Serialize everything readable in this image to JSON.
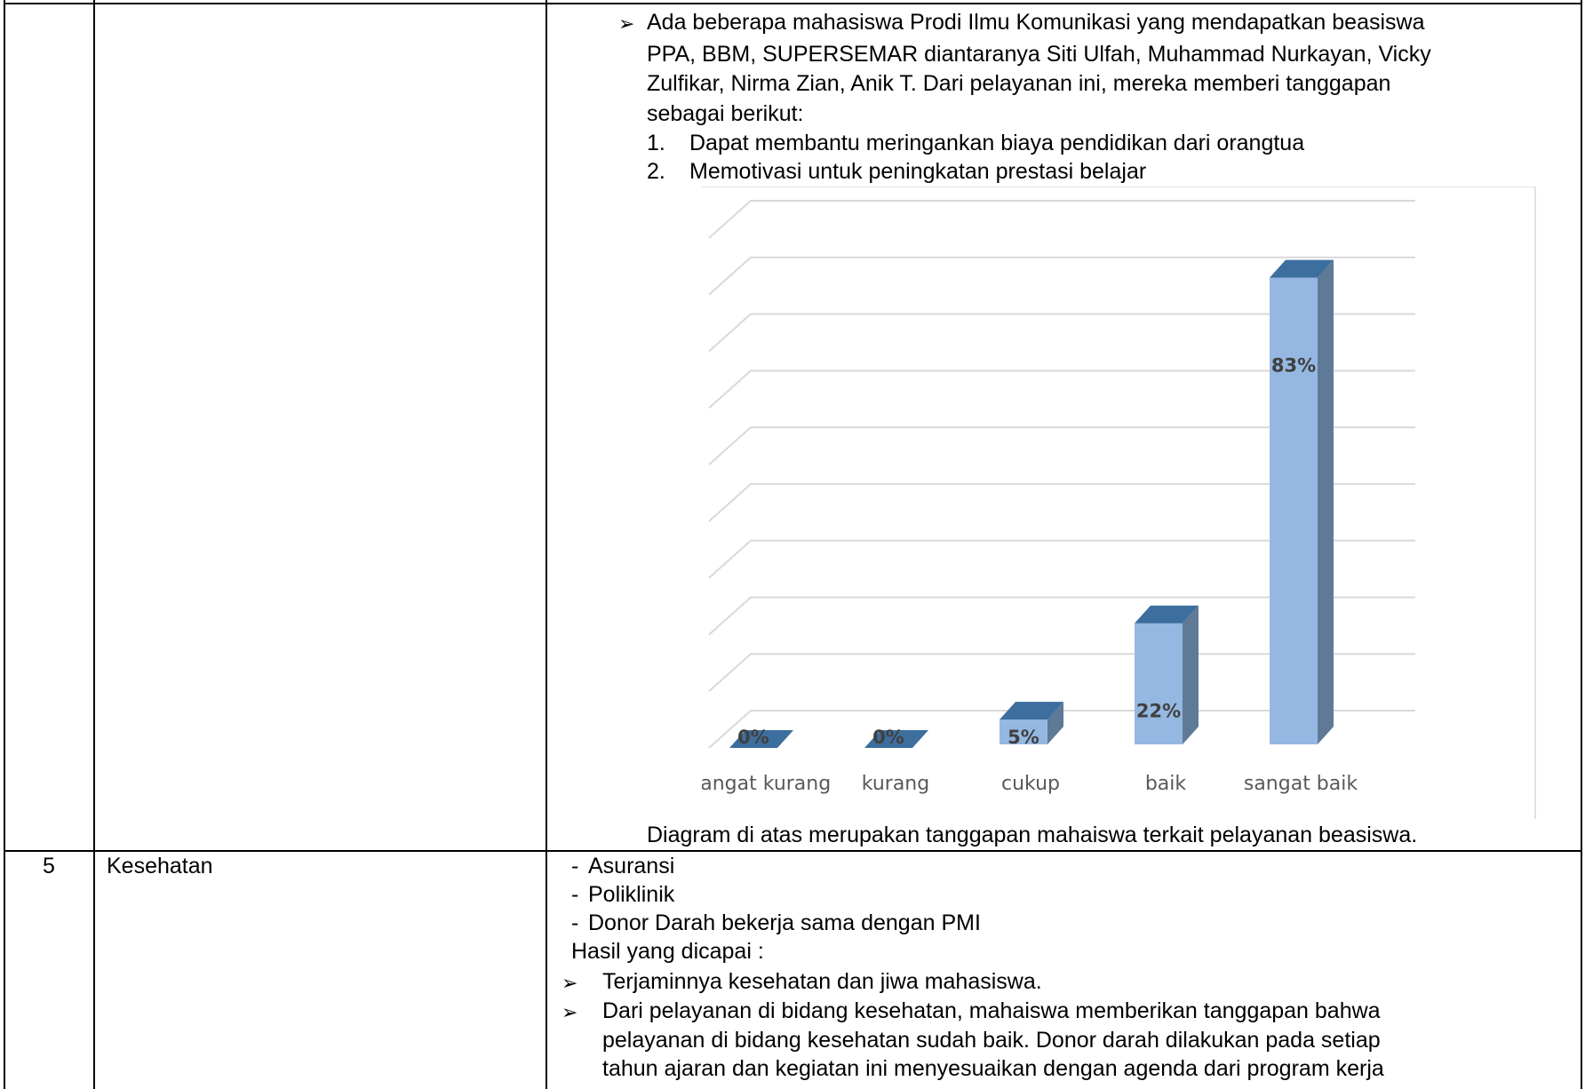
{
  "row_top": {
    "beasiswa_bullet": {
      "marker": "➢",
      "lines": [
        "Ada beberapa mahasiswa Prodi Ilmu Komunikasi yang mendapatkan beasiswa",
        "PPA, BBM, SUPERSEMAR diantaranya Siti Ulfah, Muhammad Nurkayan, Vicky",
        "Zulfikar, Nirma Zian, Anik T. Dari pelayanan ini, mereka memberi tanggapan",
        "sebagai berikut:"
      ]
    },
    "responses": [
      {
        "num": "1.",
        "text": "Dapat membantu meringankan biaya pendidikan dari orangtua"
      },
      {
        "num": "2.",
        "text": "Memotivasi untuk peningkatan prestasi belajar"
      }
    ],
    "caption": "Diagram di atas merupakan tanggapan mahaiswa terkait pelayanan beasiswa."
  },
  "row_5": {
    "no": "5",
    "category": "Kesehatan",
    "dash_items": [
      {
        "dash": "-",
        "text": "Asuransi"
      },
      {
        "dash": "-",
        "text": "Poliklinik"
      },
      {
        "dash": "-",
        "text": "Donor Darah bekerja sama dengan PMI"
      }
    ],
    "result_heading": "Hasil yang dicapai :",
    "bullets": [
      {
        "marker": "➢",
        "lines": [
          "Terjaminnya kesehatan dan jiwa mahasiswa."
        ]
      },
      {
        "marker": "➢",
        "lines": [
          "Dari pelayanan di bidang kesehatan, mahaiswa memberikan tanggapan bahwa",
          "pelayanan di bidang kesehatan sudah baik. Donor darah dilakukan pada setiap",
          "tahun ajaran dan kegiatan ini menyesuaikan dengan agenda dari program kerja"
        ]
      }
    ]
  },
  "chart_data": {
    "type": "bar",
    "categories": [
      "sangat kurang",
      "kurang",
      "cukup",
      "baik",
      "sangat baik"
    ],
    "values": [
      0,
      0,
      5,
      22,
      83
    ],
    "data_labels": [
      "0%",
      "0%",
      "5%",
      "22%",
      "83%"
    ],
    "ylim": [
      0,
      90
    ],
    "yticks": [
      "0",
      "10",
      "20",
      "30",
      "40",
      "50",
      "60",
      "70",
      "80",
      "90"
    ],
    "grid": true,
    "three_d": true,
    "colors": {
      "front": "#95B8E2",
      "top": "#3C6E9E",
      "side": "#5F7A96",
      "grid": "#D9D9D9"
    }
  }
}
